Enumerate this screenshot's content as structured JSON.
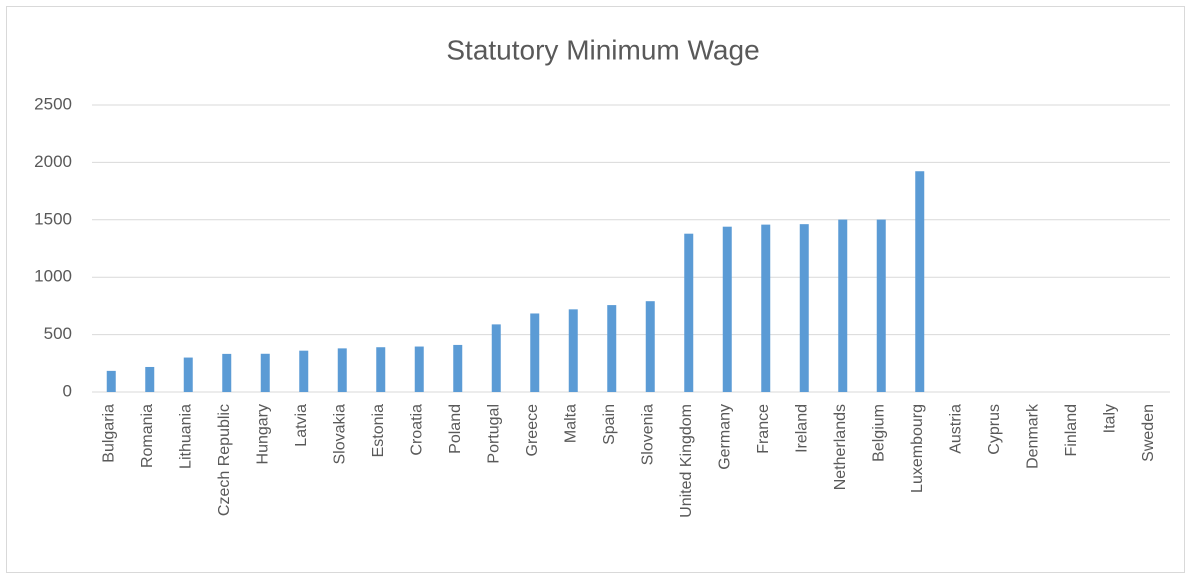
{
  "chart_data": {
    "type": "bar",
    "title": "Statutory Minimum Wage",
    "categories": [
      "Bulgaria",
      "Romania",
      "Lithuania",
      "Czech Republic",
      "Hungary",
      "Latvia",
      "Slovakia",
      "Estonia",
      "Croatia",
      "Poland",
      "Portugal",
      "Greece",
      "Malta",
      "Spain",
      "Slovenia",
      "United Kingdom",
      "Germany",
      "France",
      "Ireland",
      "Netherlands",
      "Belgium",
      "Luxembourg",
      "Austria",
      "Cyprus",
      "Denmark",
      "Finland",
      "Italy",
      "Sweden"
    ],
    "values": [
      184,
      218,
      300,
      332,
      333,
      360,
      380,
      390,
      396,
      410,
      589,
      684,
      720,
      757,
      791,
      1379,
      1440,
      1458,
      1462,
      1502,
      1502,
      1923,
      null,
      null,
      null,
      null,
      null,
      null
    ],
    "color": "#5b9bd5",
    "ylim": [
      0,
      2500
    ],
    "yticks": [
      0,
      500,
      1000,
      1500,
      2000,
      2500
    ],
    "grid": true
  }
}
